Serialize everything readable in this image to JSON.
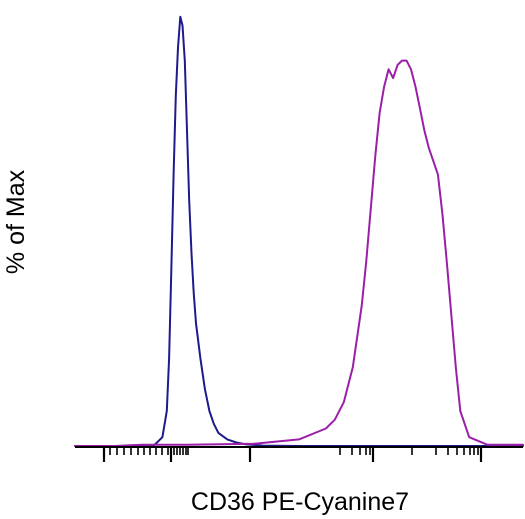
{
  "chart_data": {
    "type": "line",
    "title": "",
    "xlabel": "CD36 PE-Cyanine7",
    "ylabel": "% of Max",
    "xscale": "log",
    "xlim": [
      0,
      100
    ],
    "ylim": [
      0,
      100
    ],
    "grid": false,
    "legend": "none",
    "series": [
      {
        "color": "#1f1a8c",
        "x": [
          0,
          17.5,
          19.5,
          20.5,
          21.0,
          21.5,
          22.0,
          22.5,
          23.0,
          23.5,
          24.0,
          24.5,
          25.0,
          25.5,
          26.0,
          26.5,
          27.0,
          28.0,
          29.0,
          30.0,
          31.0,
          32.0,
          34.0,
          36.0,
          38.0,
          42.0,
          50.0,
          100
        ],
        "y": [
          0,
          0,
          2,
          8,
          20,
          40,
          62,
          80,
          91,
          98,
          96,
          88,
          72,
          56,
          44,
          35,
          28,
          20,
          13,
          8,
          5,
          3,
          1.5,
          0.8,
          0.4,
          0.1,
          0,
          0
        ]
      },
      {
        "color": "#9b1fa8",
        "x": [
          0,
          9,
          15,
          25,
          40,
          50,
          56,
          58,
          60,
          62,
          64,
          65,
          66,
          67,
          68,
          69,
          70,
          71,
          72,
          73,
          74,
          75,
          76,
          77,
          78,
          79,
          80,
          81,
          82,
          83,
          84,
          85,
          86,
          88,
          92,
          100
        ],
        "y": [
          0,
          0,
          0.3,
          0.3,
          0.5,
          1.5,
          4,
          6,
          10,
          18,
          32,
          42,
          54,
          66,
          76,
          82,
          86,
          84,
          87,
          88,
          88,
          86,
          82,
          77,
          72,
          68,
          65,
          62,
          53,
          42,
          30,
          18,
          8,
          2,
          0.3,
          0.3
        ]
      }
    ]
  }
}
